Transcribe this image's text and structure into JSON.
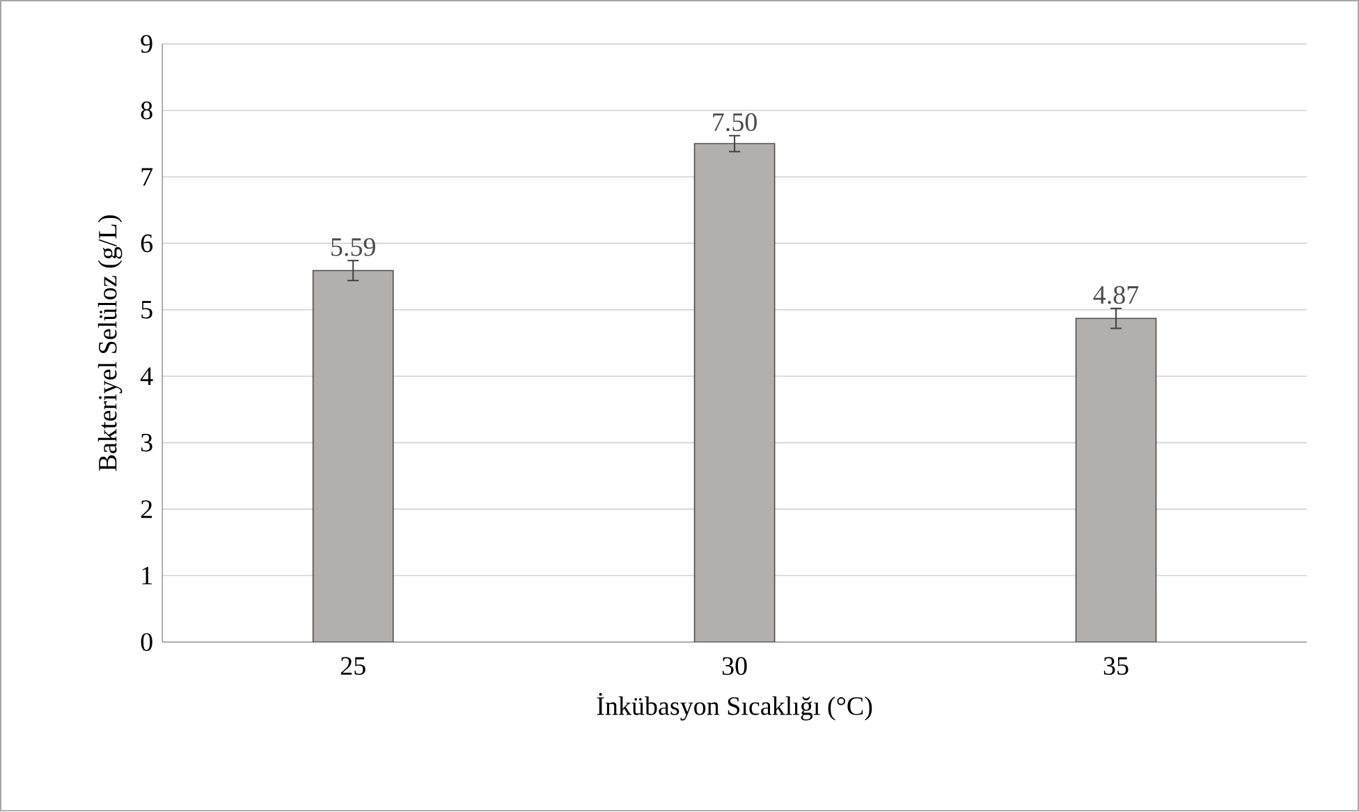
{
  "chart_data": {
    "type": "bar",
    "xlabel": "İnkübasyon Sıcaklığı (°C)",
    "ylabel": "Bakteriyel Selüloz (g/L)",
    "categories": [
      "25",
      "30",
      "35"
    ],
    "values": [
      5.59,
      7.5,
      4.87
    ],
    "errors": [
      0.15,
      0.12,
      0.15
    ],
    "value_labels": [
      "5.59",
      "7.50",
      "4.87"
    ],
    "color": "#b3afac",
    "ylim": [
      0,
      9
    ],
    "yticks": [
      0,
      1,
      2,
      3,
      4,
      5,
      6,
      7,
      8,
      9
    ],
    "grid": "y"
  }
}
